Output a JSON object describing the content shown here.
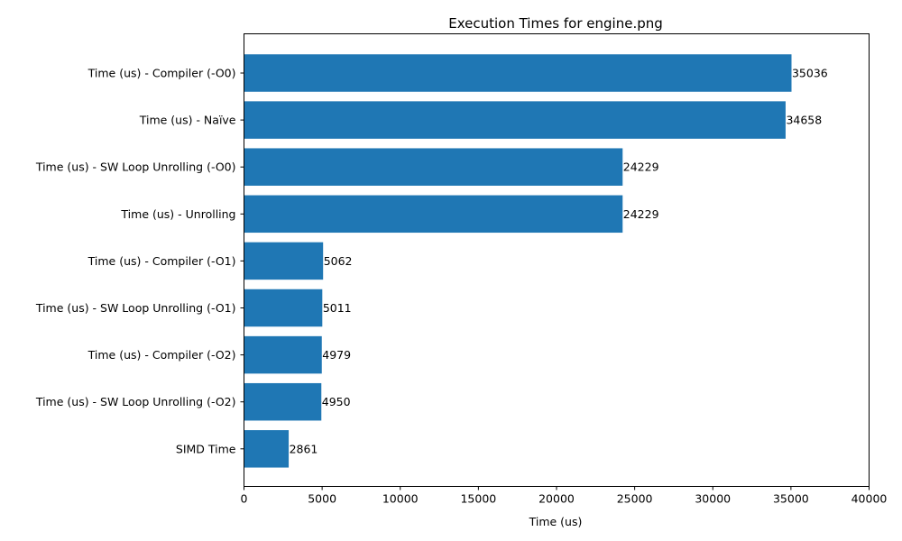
{
  "chart_data": {
    "type": "bar",
    "orientation": "horizontal",
    "title": "Execution Times for engine.png",
    "xlabel": "Time (us)",
    "ylabel": "",
    "xlim": [
      0,
      40000
    ],
    "xticks": [
      0,
      5000,
      10000,
      15000,
      20000,
      25000,
      30000,
      35000,
      40000
    ],
    "categories": [
      "Time (us) - Compiler (-O0)",
      "Time (us) - Naïve",
      "Time (us) - SW Loop Unrolling (-O0)",
      "Time (us) - Unrolling",
      "Time (us) - Compiler (-O1)",
      "Time (us) - SW Loop Unrolling (-O1)",
      "Time (us) - Compiler (-O2)",
      "Time (us) - SW Loop Unrolling (-O2)",
      "SIMD Time"
    ],
    "values": [
      35036,
      34658,
      24229,
      24229,
      5062,
      5011,
      4979,
      4950,
      2861
    ],
    "bar_color": "#1f77b4",
    "grid": false,
    "legend": "none"
  }
}
